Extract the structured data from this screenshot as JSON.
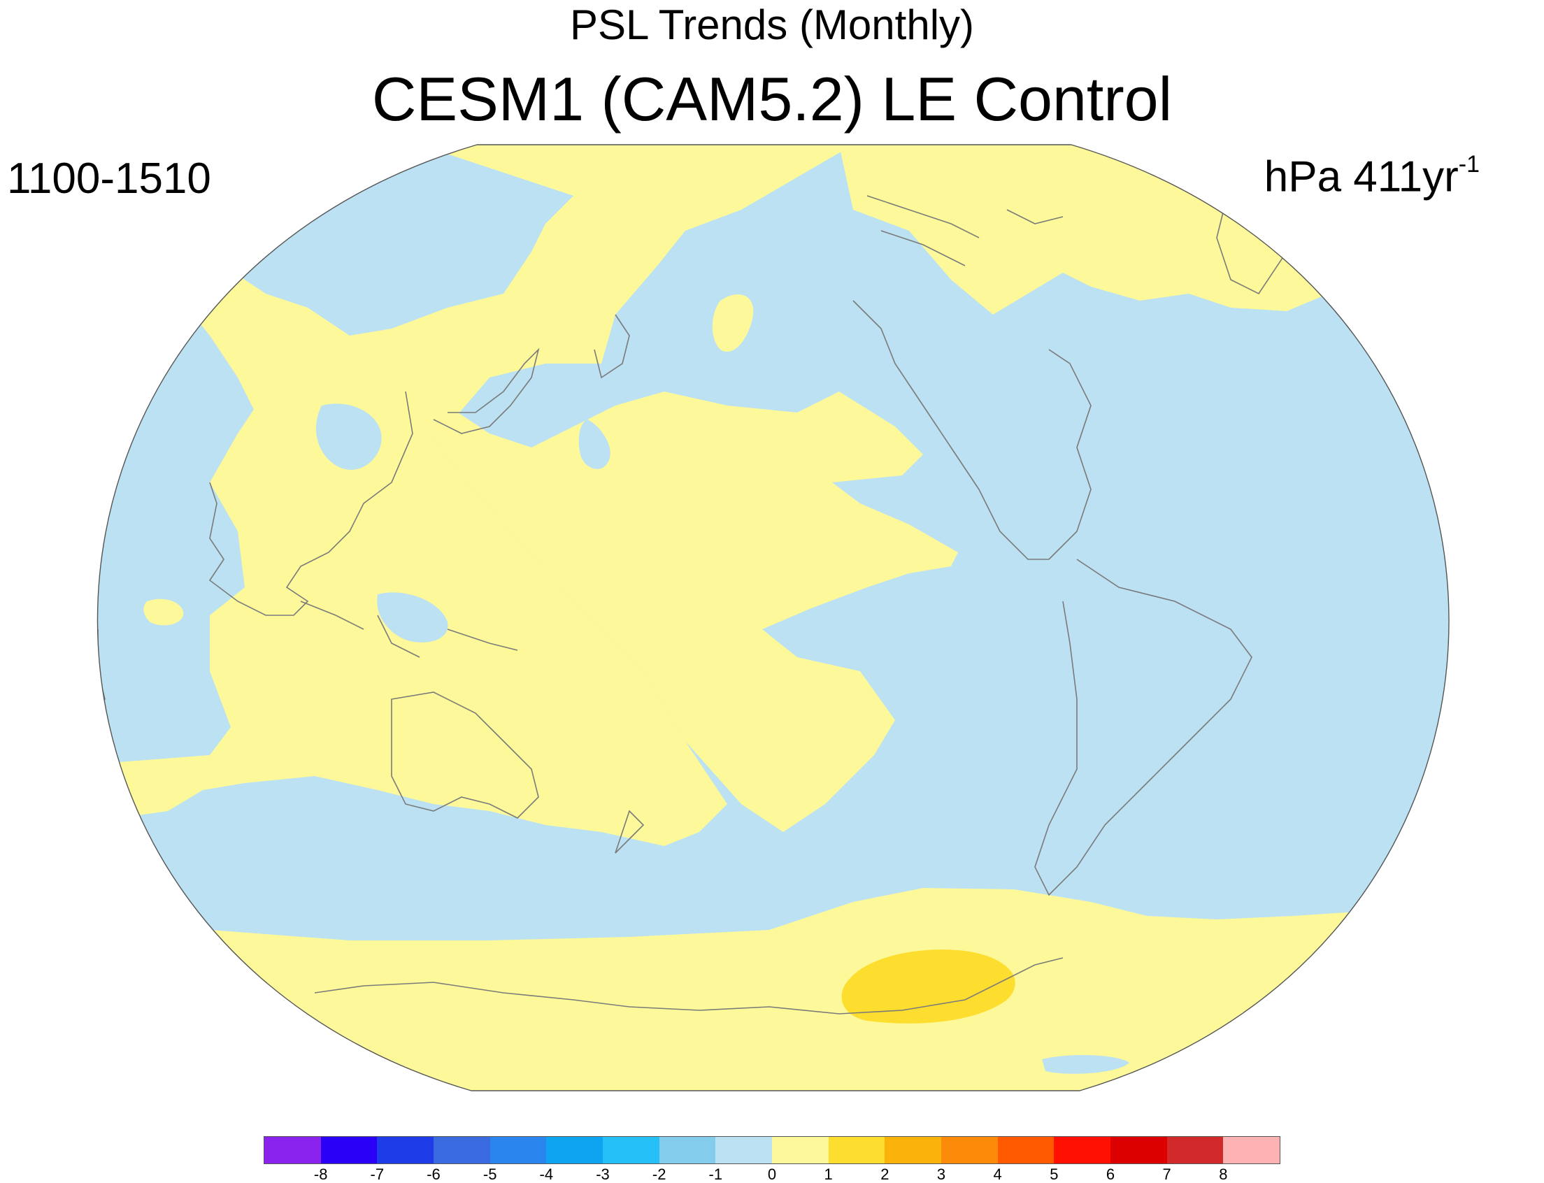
{
  "title": "PSL Trends (Monthly)",
  "subtitle": "CESM1 (CAM5.2) LE Control",
  "period_label": "1100-1510",
  "units_label": {
    "main": "hPa 411yr",
    "superscript": "-1"
  },
  "colors": {
    "ocean_negative": "#bbe1f2",
    "positive_light": "#fdf99a",
    "positive_mid": "#fdde2e",
    "coastline": "#7a7a7a"
  },
  "colorbar": {
    "boxes": [
      {
        "color": "#8a23ee"
      },
      {
        "color": "#2a00f6"
      },
      {
        "color": "#1e3de9"
      },
      {
        "color": "#3a6ae0"
      },
      {
        "color": "#2b85ee"
      },
      {
        "color": "#0ea4f2"
      },
      {
        "color": "#24c0f7"
      },
      {
        "color": "#84ccec"
      },
      {
        "color": "#bbe1f2"
      },
      {
        "color": "#fdf99a"
      },
      {
        "color": "#fdde2e"
      },
      {
        "color": "#fbb20a"
      },
      {
        "color": "#fb8b08"
      },
      {
        "color": "#ff5a00"
      },
      {
        "color": "#ff1000"
      },
      {
        "color": "#dc0000"
      },
      {
        "color": "#d22a2a"
      },
      {
        "color": "#fdb3b3"
      }
    ],
    "tick_labels": [
      "-8",
      "-7",
      "-6",
      "-5",
      "-4",
      "-3",
      "-2",
      "-1",
      "0",
      "1",
      "2",
      "3",
      "4",
      "5",
      "6",
      "7",
      "8"
    ]
  }
}
